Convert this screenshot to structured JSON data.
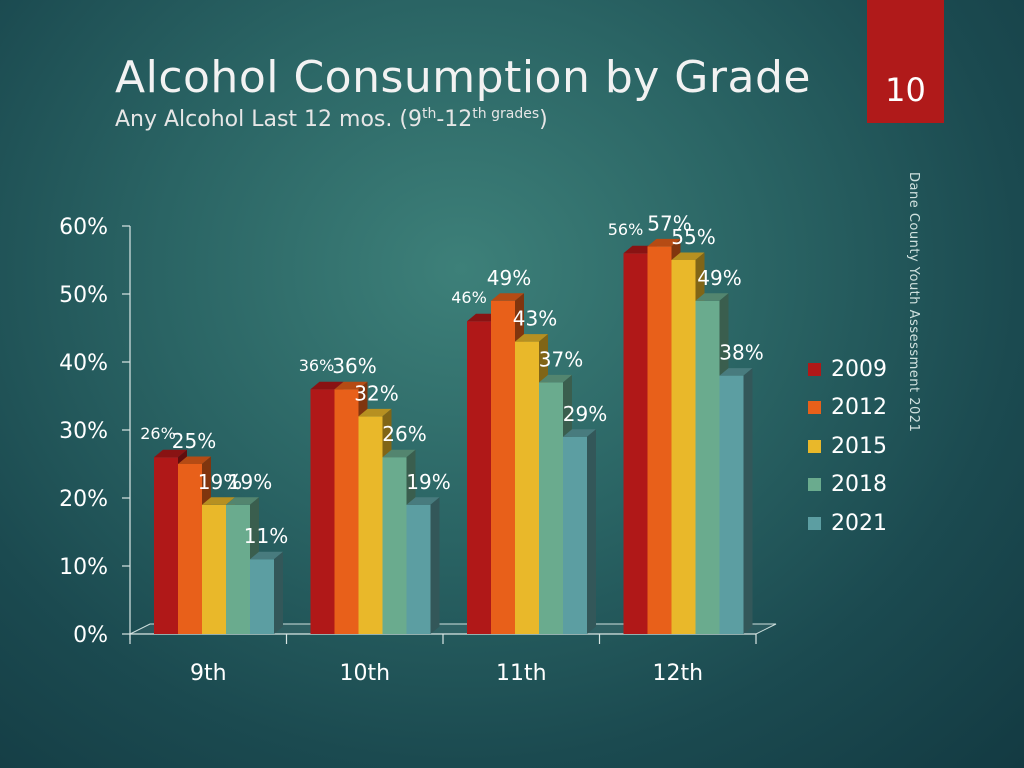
{
  "slide": {
    "title": "Alcohol Consumption by Grade",
    "subtitle_parts": [
      "Any Alcohol Last 12 mos. (9",
      "th",
      "-12",
      "th",
      " grades",
      ")"
    ],
    "slide_number": "10",
    "side_caption": "Dane County Youth Assessment 2021"
  },
  "colors": {
    "2009": "#b01818",
    "2012": "#e8601a",
    "2015": "#e9b82a",
    "2018": "#6aab8e",
    "2021": "#5c9ea2",
    "title_box": "#b01a1a"
  },
  "chart_data": {
    "type": "bar",
    "title": "",
    "xlabel": "",
    "ylabel": "",
    "ylim": [
      0,
      60
    ],
    "y_ticks": [
      "0%",
      "10%",
      "20%",
      "30%",
      "40%",
      "50%",
      "60%"
    ],
    "categories": [
      "9th",
      "10th",
      "11th",
      "12th"
    ],
    "series": [
      {
        "name": "2009",
        "values": [
          26,
          36,
          46,
          56
        ],
        "labels": [
          "26%",
          "36%",
          "46%",
          "56%"
        ]
      },
      {
        "name": "2012",
        "values": [
          25,
          36,
          49,
          57
        ],
        "labels": [
          "25%",
          "36%",
          "49%",
          "57%"
        ]
      },
      {
        "name": "2015",
        "values": [
          19,
          32,
          43,
          55
        ],
        "labels": [
          "19%",
          "32%",
          "43%",
          "55%"
        ]
      },
      {
        "name": "2018",
        "values": [
          19,
          26,
          37,
          49
        ],
        "labels": [
          "19%",
          "26%",
          "37%",
          "49%"
        ]
      },
      {
        "name": "2021",
        "values": [
          11,
          19,
          29,
          38
        ],
        "labels": [
          "11%",
          "19%",
          "29%",
          "38%"
        ]
      }
    ],
    "legend_position": "right",
    "grid": false
  }
}
